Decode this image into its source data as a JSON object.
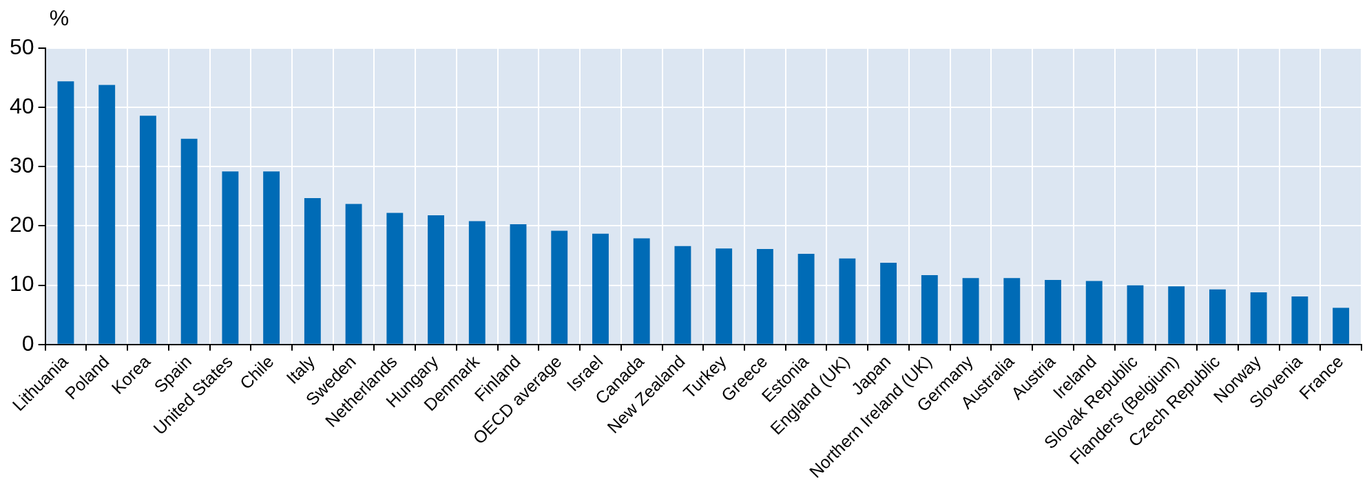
{
  "chart_data": {
    "type": "bar",
    "ylabel": "%",
    "categories": [
      "Lithuania",
      "Poland",
      "Korea",
      "Spain",
      "United States",
      "Chile",
      "Italy",
      "Sweden",
      "Netherlands",
      "Hungary",
      "Denmark",
      "Finland",
      "OECD average",
      "Israel",
      "Canada",
      "New Zealand",
      "Turkey",
      "Greece",
      "Estonia",
      "England (UK)",
      "Japan",
      "Northern Ireland (UK)",
      "Germany",
      "Australia",
      "Austria",
      "Ireland",
      "Slovak Republic",
      "Flanders (Belgium)",
      "Czech Republic",
      "Norway",
      "Slovenia",
      "France"
    ],
    "values": [
      44.4,
      43.8,
      38.6,
      34.7,
      29.2,
      29.2,
      24.7,
      23.7,
      22.2,
      21.8,
      20.8,
      20.3,
      19.2,
      18.7,
      17.9,
      16.6,
      16.2,
      16.1,
      15.3,
      14.5,
      13.8,
      11.7,
      11.2,
      11.2,
      10.9,
      10.7,
      10.0,
      9.8,
      9.3,
      8.8,
      8.1,
      6.2
    ],
    "color": "#006bb6",
    "ylim": [
      0,
      50
    ],
    "yticks": [
      0,
      10,
      20,
      30,
      40,
      50
    ],
    "grid": true
  }
}
